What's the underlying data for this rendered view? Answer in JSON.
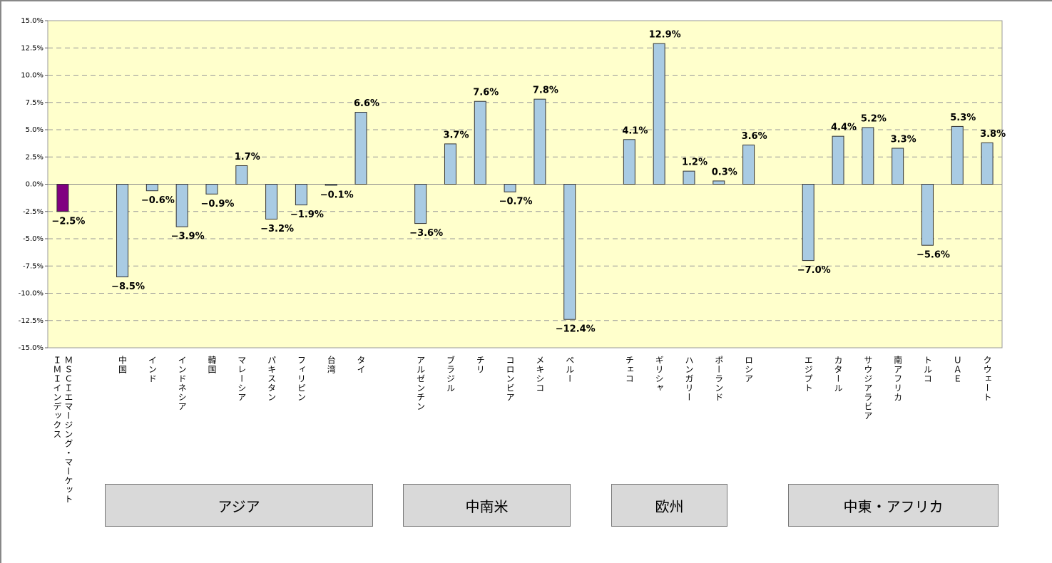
{
  "chart_data": {
    "type": "bar",
    "categories": [
      "ＭＳＣＩエマージング・マーケット\nＩＭＩインデックス",
      null,
      "中国",
      "インド",
      "インドネシア",
      "韓国",
      "マレーシア",
      "パキスタン",
      "フィリピン",
      "台湾",
      "タイ",
      null,
      "アルゼンチン",
      "ブラジル",
      "チリ",
      "コロンビア",
      "メキシコ",
      "ペルー",
      null,
      "チェコ",
      "ギリシャ",
      "ハンガリー",
      "ポーランド",
      "ロシア",
      null,
      "エジプト",
      "カタール",
      "サウジアラビア",
      "南アフリカ",
      "トルコ",
      "ＵＡＥ",
      "クウェート"
    ],
    "values": [
      -2.5,
      null,
      -8.5,
      -0.6,
      -3.9,
      -0.9,
      1.7,
      -3.2,
      -1.9,
      -0.1,
      6.6,
      null,
      -3.6,
      3.7,
      7.6,
      -0.7,
      7.8,
      -12.4,
      null,
      4.1,
      12.9,
      1.2,
      0.3,
      3.6,
      null,
      -7.0,
      4.4,
      5.2,
      3.3,
      -5.6,
      5.3,
      3.8
    ],
    "value_labels": [
      "−2.5%",
      null,
      "−8.5%",
      "−0.6%",
      "−3.9%",
      "−0.9%",
      "1.7%",
      "−3.2%",
      "−1.9%",
      "−0.1%",
      "6.6%",
      null,
      "−3.6%",
      "3.7%",
      "7.6%",
      "−0.7%",
      "7.8%",
      "−12.4%",
      null,
      "4.1%",
      "12.9%",
      "1.2%",
      "0.3%",
      "3.6%",
      null,
      "−7.0%",
      "4.4%",
      "5.2%",
      "3.3%",
      "−5.6%",
      "5.3%",
      "3.8%"
    ],
    "colors": [
      "#800080",
      null,
      "#a9cbe3",
      "#a9cbe3",
      "#a9cbe3",
      "#a9cbe3",
      "#a9cbe3",
      "#a9cbe3",
      "#a9cbe3",
      "#a9cbe3",
      "#a9cbe3",
      null,
      "#a9cbe3",
      "#a9cbe3",
      "#a9cbe3",
      "#a9cbe3",
      "#a9cbe3",
      "#a9cbe3",
      null,
      "#a9cbe3",
      "#a9cbe3",
      "#a9cbe3",
      "#a9cbe3",
      "#a9cbe3",
      null,
      "#a9cbe3",
      "#a9cbe3",
      "#a9cbe3",
      "#a9cbe3",
      "#a9cbe3",
      "#a9cbe3",
      "#a9cbe3"
    ],
    "ylim": [
      -15,
      15
    ],
    "yticks": [
      {
        "value": -15,
        "label": "-15.0%"
      },
      {
        "value": -12.5,
        "label": "-12.5%"
      },
      {
        "value": -10,
        "label": "-10.0%"
      },
      {
        "value": -7.5,
        "label": "-7.5%"
      },
      {
        "value": -5,
        "label": "-5.0%"
      },
      {
        "value": -2.5,
        "label": "-2.5%"
      },
      {
        "value": 0,
        "label": "0.0%"
      },
      {
        "value": 2.5,
        "label": "2.5%"
      },
      {
        "value": 5,
        "label": "5.0%"
      },
      {
        "value": 7.5,
        "label": "7.5%"
      },
      {
        "value": 10,
        "label": "10.0%"
      },
      {
        "value": 12.5,
        "label": "12.5%"
      },
      {
        "value": 15,
        "label": "15.0%"
      }
    ],
    "grid": true,
    "groups": [
      "アジア",
      "中南米",
      "欧州",
      "中東・アフリカ"
    ]
  }
}
